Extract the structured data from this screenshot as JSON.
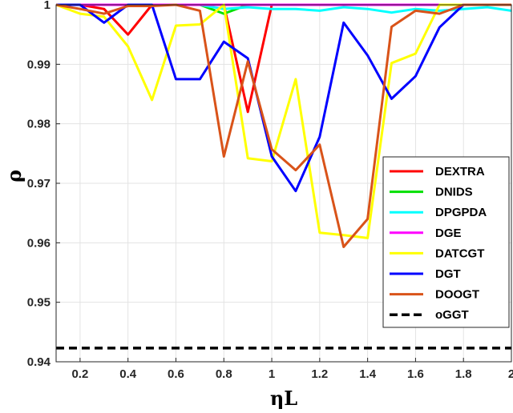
{
  "chart_data": {
    "type": "line",
    "title": "",
    "xlabel": "ηL",
    "ylabel": "ρ",
    "xlim": [
      0.1,
      2
    ],
    "ylim": [
      0.94,
      1
    ],
    "x_ticks": [
      0.2,
      0.4,
      0.6,
      0.8,
      1,
      1.2,
      1.4,
      1.6,
      1.8,
      2
    ],
    "x_tick_labels": [
      "0.2",
      "0.4",
      "0.6",
      "0.8",
      "1",
      "1.2",
      "1.4",
      "1.6",
      "1.8",
      "2"
    ],
    "y_ticks": [
      0.94,
      0.95,
      0.96,
      0.97,
      0.98,
      0.99,
      1
    ],
    "y_tick_labels": [
      "0.94",
      "0.95",
      "0.96",
      "0.97",
      "0.98",
      "0.99",
      "1"
    ],
    "grid": true,
    "legend_position": "right",
    "x": [
      0.1,
      0.2,
      0.3,
      0.4,
      0.5,
      0.6,
      0.7,
      0.8,
      0.9,
      1.0,
      1.1,
      1.2,
      1.3,
      1.4,
      1.5,
      1.6,
      1.7,
      1.8,
      1.9,
      2.0
    ],
    "series": [
      {
        "name": "DEXTRA",
        "color": "#ff0000",
        "dash": false,
        "values": [
          1.0,
          1.0,
          0.9993,
          0.995,
          1.0,
          1.0,
          1.0,
          1.0,
          0.982,
          1.0,
          1.0,
          1.0,
          1.0,
          1.0,
          1.0,
          1.0,
          1.0,
          1.0,
          1.0,
          1.0
        ]
      },
      {
        "name": "DNIDS",
        "color": "#00e000",
        "dash": false,
        "values": [
          1.0,
          1.0,
          1.0,
          1.0,
          1.0,
          1.0,
          1.0,
          0.9985,
          1.0,
          1.0,
          1.0,
          1.0,
          1.0,
          1.0,
          1.0,
          1.0,
          1.0,
          1.0,
          1.0,
          1.0
        ]
      },
      {
        "name": "DPGPDA",
        "color": "#00ffff",
        "dash": false,
        "values": [
          1.0,
          1.0,
          1.0,
          1.0,
          1.0,
          1.0,
          1.0,
          0.9993,
          0.9996,
          0.9993,
          0.9993,
          0.999,
          0.9996,
          0.9993,
          0.9987,
          0.9993,
          0.999,
          0.9993,
          0.9996,
          0.999
        ]
      },
      {
        "name": "DGE",
        "color": "#ff00ff",
        "dash": false,
        "values": [
          1.0,
          1.0,
          1.0,
          1.0,
          1.0,
          1.0,
          1.0,
          1.0,
          1.0,
          1.0,
          1.0,
          1.0,
          1.0,
          1.0,
          1.0,
          1.0,
          1.0,
          1.0,
          1.0,
          1.0
        ]
      },
      {
        "name": "DATCGT",
        "color": "#ffff00",
        "dash": false,
        "values": [
          1.0,
          0.9985,
          0.998,
          0.993,
          0.984,
          0.9965,
          0.9967,
          1.0,
          0.9742,
          0.9737,
          0.9875,
          0.9617,
          0.9613,
          0.9608,
          0.9902,
          0.9918,
          1.0,
          1.0,
          1.0,
          1.0
        ]
      },
      {
        "name": "DGT",
        "color": "#0000ff",
        "dash": false,
        "values": [
          1.0,
          1.0,
          0.997,
          1.0,
          1.0,
          0.9875,
          0.9875,
          0.9938,
          0.991,
          0.9745,
          0.9687,
          0.9778,
          0.997,
          0.9915,
          0.9842,
          0.988,
          0.9962,
          1.0,
          1.0,
          1.0
        ]
      },
      {
        "name": "DOOGT",
        "color": "#d95319",
        "dash": false,
        "values": [
          1.0,
          0.9993,
          0.9985,
          0.9998,
          0.9998,
          1.0,
          0.999,
          0.9745,
          0.9905,
          0.9757,
          0.9722,
          0.9765,
          0.9593,
          0.964,
          0.9963,
          0.999,
          0.9985,
          1.0,
          1.0,
          1.0
        ]
      },
      {
        "name": "oGGT",
        "color": "#000000",
        "dash": true,
        "values": [
          0.9423,
          0.9423,
          0.9423,
          0.9423,
          0.9423,
          0.9423,
          0.9423,
          0.9423,
          0.9423,
          0.9423,
          0.9423,
          0.9423,
          0.9423,
          0.9423,
          0.9423,
          0.9423,
          0.9423,
          0.9423,
          0.9423,
          0.9423
        ]
      }
    ]
  }
}
